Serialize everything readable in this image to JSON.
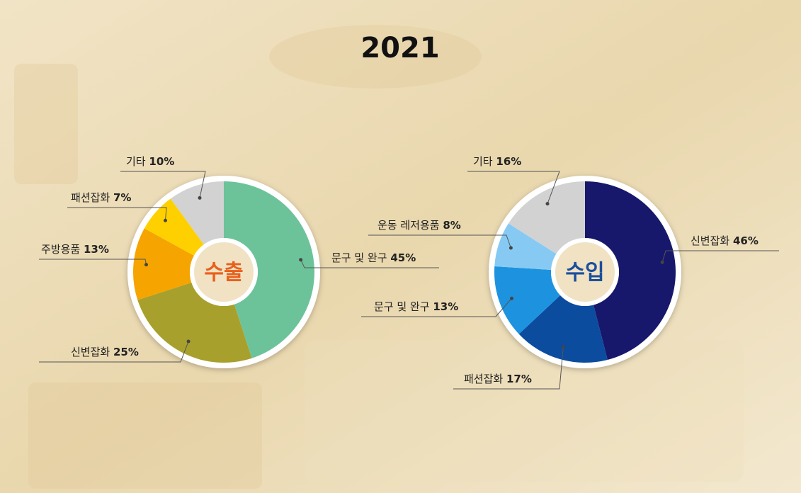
{
  "title": "2021",
  "chart_data": [
    {
      "type": "donut",
      "center_label": "수출",
      "center_color": "#e8601c",
      "categories": [
        "문구 및 완구",
        "신변잡화",
        "주방용품",
        "패션잡화",
        "기타"
      ],
      "values": [
        45,
        25,
        13,
        7,
        10
      ],
      "value_labels": [
        "45%",
        "25%",
        "13%",
        "7%",
        "10%"
      ],
      "colors": [
        "#6cc39a",
        "#a8a02c",
        "#f5a400",
        "#ffd000",
        "#d2d2d2"
      ]
    },
    {
      "type": "donut",
      "center_label": "수입",
      "center_color": "#1a4f9c",
      "categories": [
        "신변잡화",
        "패션잡화",
        "문구 및 완구",
        "운동 레저용품",
        "기타"
      ],
      "values": [
        46,
        17,
        13,
        8,
        16
      ],
      "value_labels": [
        "46%",
        "17%",
        "13%",
        "8%",
        "16%"
      ],
      "colors": [
        "#17186b",
        "#0b4c9f",
        "#1d93df",
        "#86caf3",
        "#d2d2d2"
      ]
    }
  ]
}
